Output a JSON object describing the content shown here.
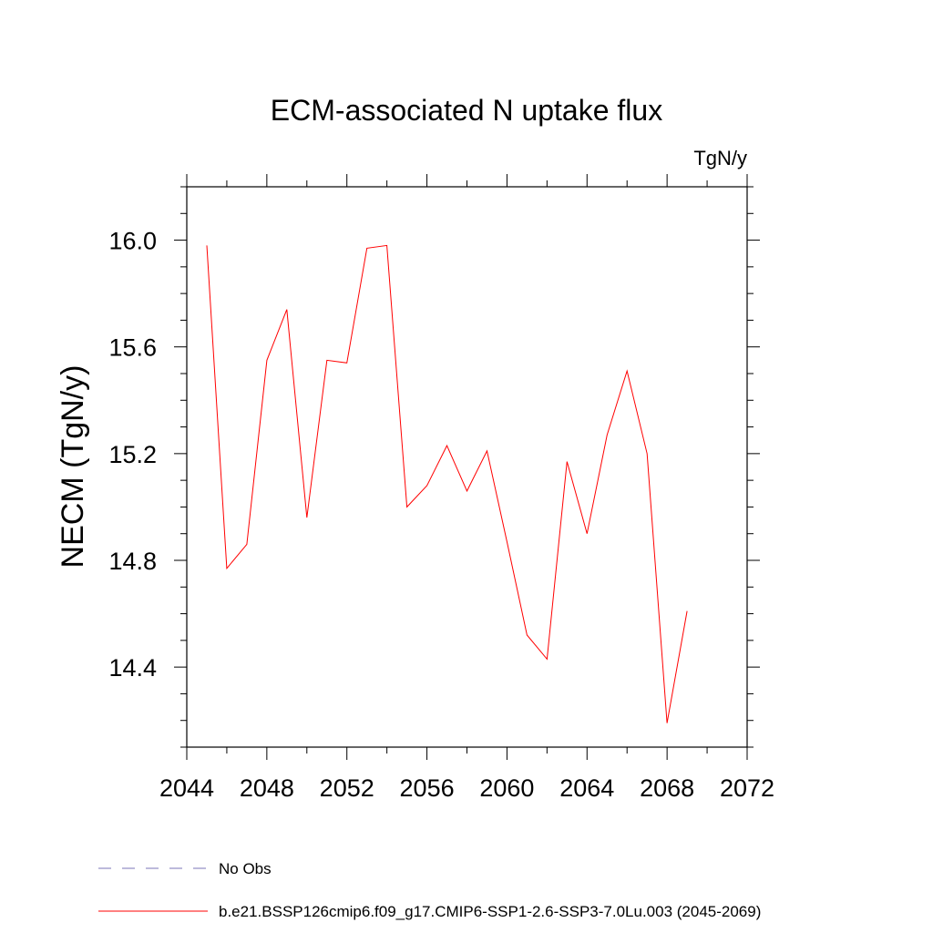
{
  "chart_data": {
    "type": "line",
    "title": "ECM-associated N uptake flux",
    "units": "TgN/y",
    "xlabel": "",
    "ylabel": "NECM  (TgN/y)",
    "xlim": [
      2044,
      2072
    ],
    "ylim": [
      14.1,
      16.2
    ],
    "xticks": [
      2044,
      2048,
      2052,
      2056,
      2060,
      2064,
      2068,
      2072
    ],
    "yticks": [
      14.4,
      14.8,
      15.2,
      15.6,
      16.0
    ],
    "ytick_labels": [
      "14.4",
      "14.8",
      "15.2",
      "15.6",
      "16.0"
    ],
    "series": [
      {
        "name": "b.e21.BSSP126cmip6.f09_g17.CMIP6-SSP1-2.6-SSP3-7.0Lu.003 (2045-2069)",
        "color": "#ff0000",
        "x": [
          2045,
          2046,
          2047,
          2048,
          2049,
          2050,
          2051,
          2052,
          2053,
          2054,
          2055,
          2056,
          2057,
          2058,
          2059,
          2060,
          2061,
          2062,
          2063,
          2064,
          2065,
          2066,
          2067,
          2068,
          2069
        ],
        "values": [
          15.98,
          14.77,
          14.86,
          15.55,
          15.74,
          14.96,
          15.55,
          15.54,
          15.97,
          15.98,
          15.0,
          15.08,
          15.23,
          15.06,
          15.21,
          14.87,
          14.52,
          14.43,
          15.17,
          14.9,
          15.27,
          15.51,
          15.2,
          14.19,
          14.61
        ]
      }
    ],
    "legend": [
      {
        "label": "No Obs",
        "style": "dashed",
        "color": "#7b74b8"
      },
      {
        "label": "b.e21.BSSP126cmip6.f09_g17.CMIP6-SSP1-2.6-SSP3-7.0Lu.003 (2045-2069)",
        "style": "solid",
        "color": "#ff0000"
      }
    ],
    "legend_position": "bottom"
  }
}
